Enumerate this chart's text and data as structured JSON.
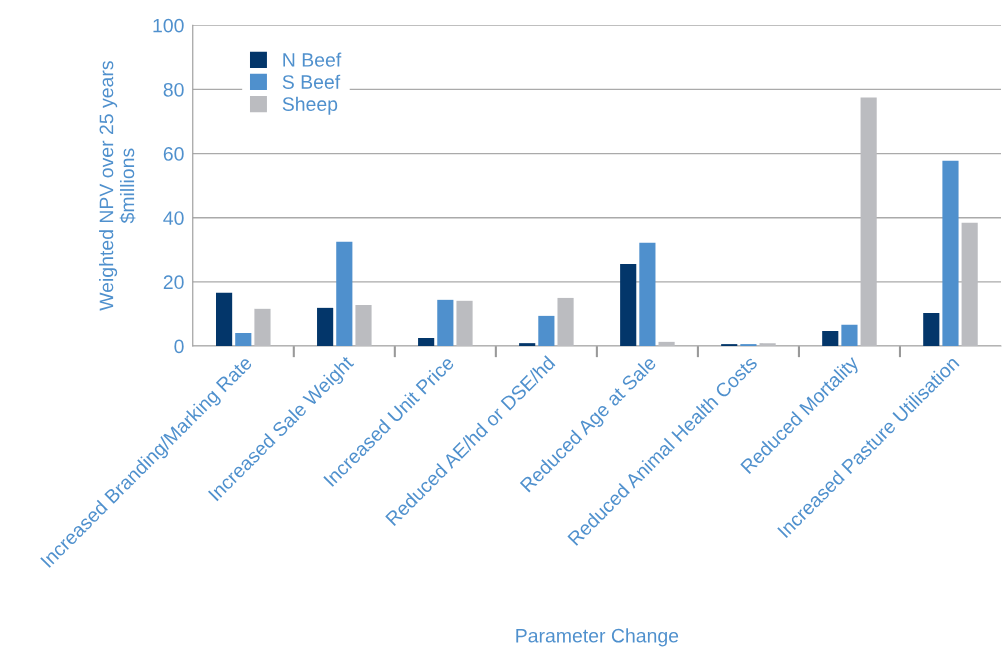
{
  "chart_data": {
    "type": "bar",
    "xlabel": "Parameter Change",
    "ylabel": "Weighted NPV over 25 years\n$millions",
    "categories": [
      "Increased Branding/Marking Rate",
      "Increased Sale Weight",
      "Increased Unit Price",
      "Reduced AE/hd or DSE/hd",
      "Reduced Age at Sale",
      "Reduced Animal Health Costs",
      "Reduced Mortality",
      "Increased Pasture Utilisation"
    ],
    "series": [
      {
        "name": "N Beef",
        "color": "#03366a",
        "values": [
          16.6,
          11.9,
          2.5,
          0.9,
          25.6,
          0.6,
          4.7,
          10.3
        ]
      },
      {
        "name": "S Beef",
        "color": "#4f90cd",
        "values": [
          4.1,
          32.5,
          14.4,
          9.4,
          32.2,
          0.6,
          6.6,
          57.8
        ]
      },
      {
        "name": "Sheep",
        "color": "#bbbcc0",
        "values": [
          11.6,
          12.8,
          14.1,
          15.0,
          1.3,
          0.9,
          77.5,
          38.4
        ]
      }
    ],
    "ylim": [
      0,
      100
    ],
    "yticks": [
      0,
      20,
      40,
      60,
      80,
      100
    ],
    "grid": "y",
    "legend": "top left"
  }
}
